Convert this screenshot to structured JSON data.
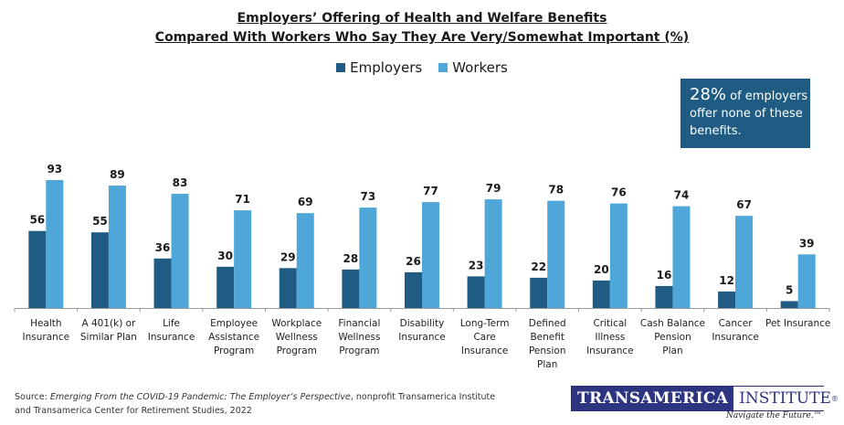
{
  "chart_data": {
    "type": "bar",
    "title": "Employers’ Offering of Health and Welfare Benefits",
    "subtitle": "Compared With Workers Who Say They Are Very/Somewhat Important (%)",
    "xlabel": "",
    "ylabel": "",
    "ylim": [
      0,
      100
    ],
    "grid": false,
    "legend_position": "top-center",
    "categories": [
      [
        "Health",
        "Insurance"
      ],
      [
        "A 401(k) or",
        "Similar Plan"
      ],
      [
        "Life",
        "Insurance"
      ],
      [
        "Employee",
        "Assistance",
        "Program"
      ],
      [
        "Workplace",
        "Wellness",
        "Program"
      ],
      [
        "Financial",
        "Wellness",
        "Program"
      ],
      [
        "Disability",
        "Insurance"
      ],
      [
        "Long-Term",
        "Care",
        "Insurance"
      ],
      [
        "Defined",
        "Benefit",
        "Pension",
        "Plan"
      ],
      [
        "Critical",
        "Illness",
        "Insurance"
      ],
      [
        "Cash Balance",
        "Pension",
        "Plan"
      ],
      [
        "Cancer",
        "Insurance"
      ],
      [
        "Pet Insurance"
      ]
    ],
    "series": [
      {
        "name": "Employers",
        "color": "#1f5b82",
        "values": [
          56,
          55,
          36,
          30,
          29,
          28,
          26,
          23,
          22,
          20,
          16,
          12,
          5
        ]
      },
      {
        "name": "Workers",
        "color": "#4fa6d8",
        "values": [
          93,
          89,
          83,
          71,
          69,
          73,
          77,
          79,
          78,
          76,
          74,
          67,
          39
        ]
      }
    ]
  },
  "legend": {
    "employers": "Employers",
    "workers": "Workers"
  },
  "callout": {
    "highlight": "28%",
    "text": " of employers offer none of these benefits."
  },
  "source": {
    "prefix": "Source: ",
    "title": "Emerging From the COVID-19 Pandemic: The Employer’s Perspective",
    "suffix": ", nonprofit Transamerica Institute",
    "line2": "and Transamerica Center for Retirement Studies, 2022"
  },
  "logo": {
    "part1": "TRANSAMERICA",
    "part2": "INSTITUTE",
    "mark": "®",
    "tagline": "Navigate the Future.™"
  }
}
